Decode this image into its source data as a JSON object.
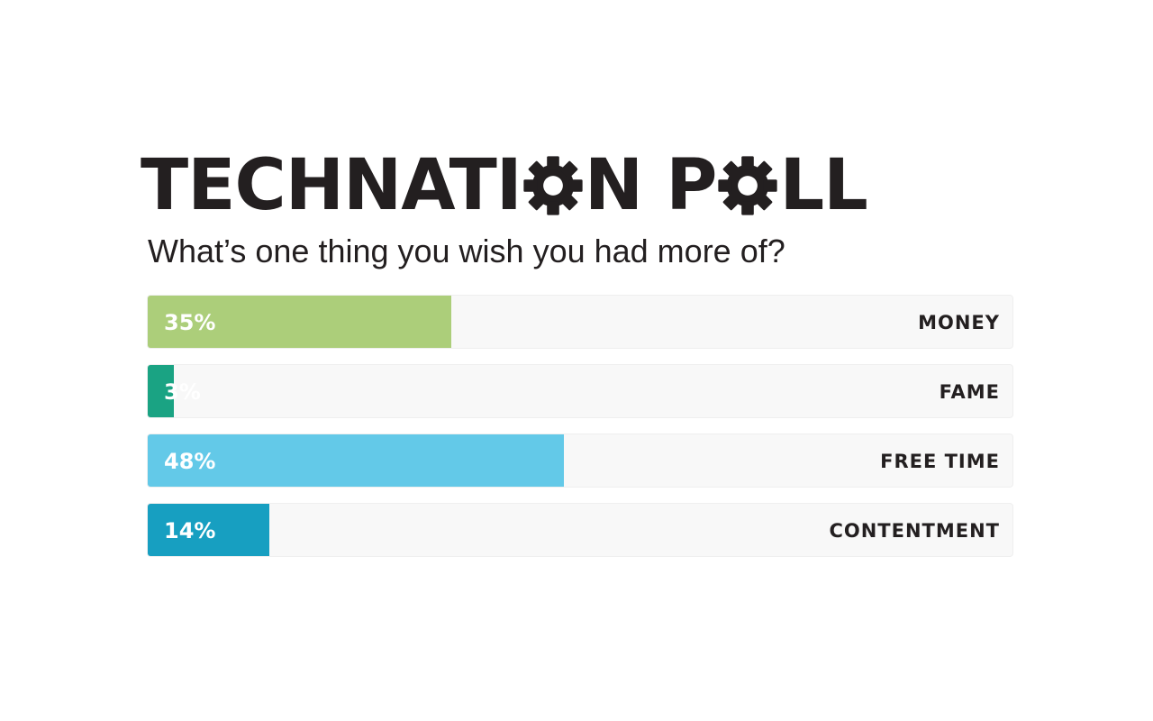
{
  "header": {
    "title_part1": "TECHNATI",
    "title_part2": "N P",
    "title_part3": "LL",
    "subtitle": "What’s one thing you wish you had more of?",
    "gear_icon": "gear-icon",
    "gear_color": "#231f20"
  },
  "chart_data": {
    "type": "bar",
    "orientation": "horizontal",
    "title": "TECHNATION POLL",
    "subtitle": "What’s one thing you wish you had more of?",
    "categories": [
      "MONEY",
      "FAME",
      "FREE TIME",
      "CONTENTMENT"
    ],
    "values": [
      35,
      3,
      48,
      14
    ],
    "value_labels": [
      "35%",
      "3%",
      "48%",
      "14%"
    ],
    "colors": [
      "#acce7a",
      "#1aa383",
      "#63c9e8",
      "#179fc1"
    ],
    "xlim": [
      0,
      100
    ],
    "unit": "%",
    "grid": false,
    "legend": "none"
  }
}
